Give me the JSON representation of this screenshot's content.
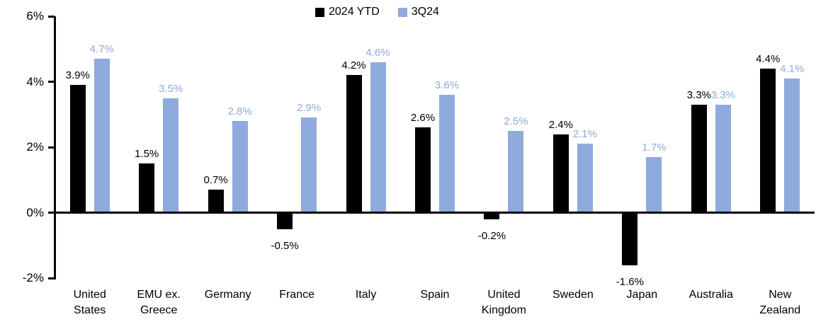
{
  "chart_data": {
    "type": "bar",
    "title": "",
    "xlabel": "",
    "ylabel": "",
    "ylim": [
      -2,
      6
    ],
    "grid": false,
    "legend_position": "top-center",
    "y_ticks": [
      {
        "label": "6%",
        "value": 6
      },
      {
        "label": "4%",
        "value": 4
      },
      {
        "label": "2%",
        "value": 2
      },
      {
        "label": "0%",
        "value": 0
      },
      {
        "label": "-2%",
        "value": -2
      }
    ],
    "categories": [
      "United\nStates",
      "EMU ex.\nGreece",
      "Germany",
      "France",
      "Italy",
      "Spain",
      "United\nKingdom",
      "Sweden",
      "Japan",
      "Australia",
      "New\nZealand"
    ],
    "series": [
      {
        "name": "2024 YTD",
        "color": "#000000",
        "values": [
          3.9,
          1.5,
          0.7,
          -0.5,
          4.2,
          2.6,
          -0.2,
          2.4,
          -1.6,
          3.3,
          4.4
        ],
        "labels": [
          "3.9%",
          "1.5%",
          "0.7%",
          "-0.5%",
          "4.2%",
          "2.6%",
          "-0.2%",
          "2.4%",
          "-1.6%",
          "3.3%",
          "4.4%"
        ]
      },
      {
        "name": "3Q24",
        "color": "#8faadc",
        "values": [
          4.7,
          3.5,
          2.8,
          2.9,
          4.6,
          3.6,
          2.5,
          2.1,
          1.7,
          3.3,
          4.1
        ],
        "labels": [
          "4.7%",
          "3.5%",
          "2.8%",
          "2.9%",
          "4.6%",
          "3.6%",
          "2.5%",
          "2.1%",
          "1.7%",
          "3.3%",
          "4.1%"
        ]
      }
    ]
  }
}
